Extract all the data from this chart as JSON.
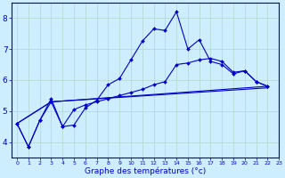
{
  "xlabel": "Graphe des températures (°c)",
  "background_color": "#cceeff",
  "line_color": "#0000cc",
  "grid_color": "#b0d8cc",
  "xlim": [
    -0.5,
    23
  ],
  "ylim": [
    3.5,
    8.5
  ],
  "yticks": [
    4,
    5,
    6,
    7,
    8
  ],
  "xticks": [
    0,
    1,
    2,
    3,
    4,
    5,
    6,
    7,
    8,
    9,
    10,
    11,
    12,
    13,
    14,
    15,
    16,
    17,
    18,
    19,
    20,
    21,
    22,
    23
  ],
  "series": [
    {
      "x": [
        0,
        1,
        2,
        3,
        4,
        5,
        6,
        7,
        8,
        9,
        10,
        11,
        12,
        13,
        14,
        15,
        16,
        17,
        18,
        19,
        20,
        21,
        22
      ],
      "y": [
        4.6,
        3.85,
        4.7,
        5.4,
        4.5,
        4.55,
        5.1,
        5.35,
        5.85,
        6.05,
        6.65,
        7.25,
        7.65,
        7.6,
        8.2,
        7.0,
        7.3,
        6.6,
        6.5,
        6.2,
        6.3,
        5.95,
        5.8
      ]
    },
    {
      "x": [
        0,
        1,
        2,
        3,
        4,
        5,
        6,
        7,
        8,
        9,
        10,
        11,
        12,
        13,
        14,
        15,
        16,
        17,
        18,
        19,
        20,
        21,
        22
      ],
      "y": [
        4.6,
        3.85,
        4.7,
        5.3,
        4.5,
        5.05,
        5.2,
        5.3,
        5.4,
        5.5,
        5.6,
        5.7,
        5.85,
        5.95,
        6.5,
        6.55,
        6.65,
        6.7,
        6.6,
        6.25,
        6.3,
        5.95,
        5.8
      ]
    },
    {
      "x": [
        0,
        3,
        22
      ],
      "y": [
        4.6,
        5.3,
        5.8
      ]
    },
    {
      "x": [
        0,
        3,
        22
      ],
      "y": [
        4.6,
        5.3,
        5.75
      ]
    }
  ]
}
